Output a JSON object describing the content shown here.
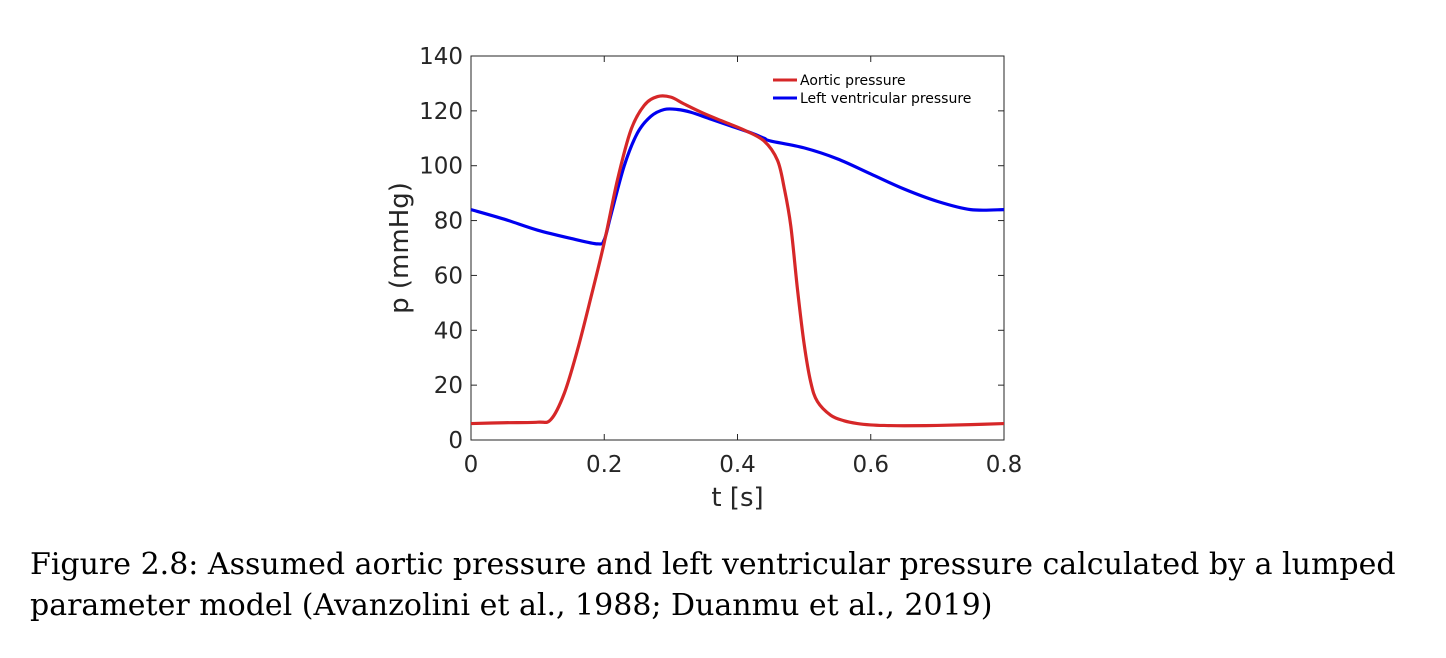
{
  "chart_data": {
    "type": "line",
    "xlabel": "t [s]",
    "ylabel": "p (mmHg)",
    "xlim": [
      0,
      0.8
    ],
    "ylim": [
      0,
      140
    ],
    "xticks": [
      0,
      0.2,
      0.4,
      0.6,
      0.8
    ],
    "xtick_labels": [
      "0",
      "0.2",
      "0.4",
      "0.6",
      "0.8"
    ],
    "yticks": [
      0,
      20,
      40,
      60,
      80,
      100,
      120,
      140
    ],
    "ytick_labels": [
      "0",
      "20",
      "40",
      "60",
      "80",
      "100",
      "120",
      "140"
    ],
    "grid": false,
    "legend_position": "top-right",
    "series": [
      {
        "name": "Aortic pressure",
        "color": "#d62728",
        "x": [
          0,
          0.05,
          0.1,
          0.12,
          0.14,
          0.16,
          0.18,
          0.2,
          0.22,
          0.24,
          0.26,
          0.28,
          0.3,
          0.32,
          0.35,
          0.38,
          0.41,
          0.44,
          0.46,
          0.47,
          0.48,
          0.49,
          0.5,
          0.51,
          0.52,
          0.54,
          0.56,
          0.58,
          0.6,
          0.62,
          0.65,
          0.7,
          0.75,
          0.8
        ],
        "y": [
          6,
          6.3,
          6.5,
          7.5,
          17,
          33,
          52,
          72,
          95,
          113,
          122,
          125.2,
          125,
          122.5,
          119,
          116,
          113,
          109,
          102,
          92,
          78,
          55,
          35,
          21,
          14,
          9,
          7,
          6,
          5.5,
          5.3,
          5.2,
          5.3,
          5.6,
          6
        ]
      },
      {
        "name": "Left ventricular pressure",
        "color": "#0000f0",
        "x": [
          0,
          0.05,
          0.1,
          0.15,
          0.19,
          0.2,
          0.21,
          0.23,
          0.25,
          0.27,
          0.29,
          0.31,
          0.33,
          0.36,
          0.39,
          0.42,
          0.44,
          0.45,
          0.5,
          0.55,
          0.6,
          0.65,
          0.7,
          0.75,
          0.8
        ],
        "y": [
          84,
          80.5,
          76.5,
          73.5,
          71.5,
          73,
          82,
          100,
          112,
          118,
          120.5,
          120.5,
          119.5,
          117,
          114.5,
          112,
          110,
          109,
          106.5,
          102.5,
          97,
          91.5,
          87,
          84,
          84
        ]
      }
    ]
  },
  "caption": "Figure 2.8: Assumed aortic pressure and left ventricular pressure calculated by a lumped parameter model (Avanzolini et al., 1988; Duanmu et al., 2019)"
}
